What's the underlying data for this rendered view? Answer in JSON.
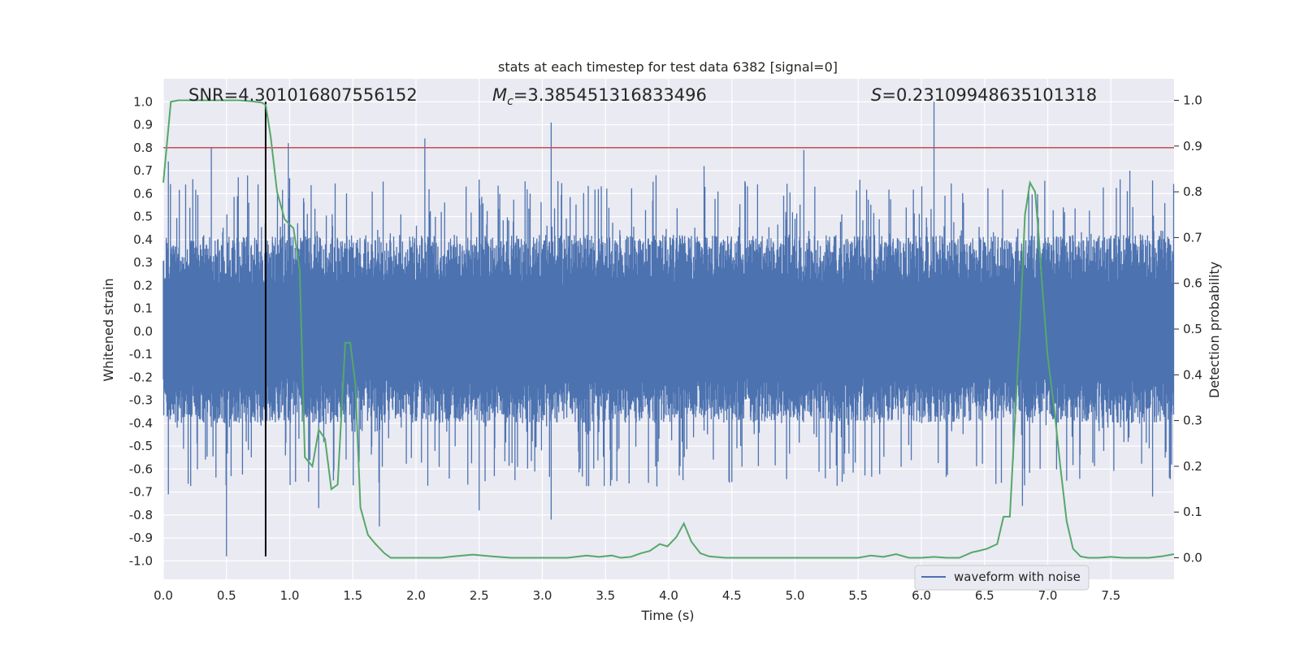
{
  "chart_data": {
    "type": "line",
    "title": "stats at each timestep for test data 6382 [signal=0]",
    "xlabel": "Time (s)",
    "ylabel_left": "Whitened strain",
    "ylabel_right": "Detection probability",
    "xlim": [
      0.0,
      8.0
    ],
    "ylim_left": [
      -1.08,
      1.1
    ],
    "ylim_right": [
      -0.047,
      1.047
    ],
    "x_ticks": [
      "0.0",
      "0.5",
      "1.0",
      "1.5",
      "2.0",
      "2.5",
      "3.0",
      "3.5",
      "4.0",
      "4.5",
      "5.0",
      "5.5",
      "6.0",
      "6.5",
      "7.0",
      "7.5"
    ],
    "y_left_ticks": [
      "-1.0",
      "-0.9",
      "-0.8",
      "-0.7",
      "-0.6",
      "-0.5",
      "-0.4",
      "-0.3",
      "-0.2",
      "-0.1",
      "0.0",
      "0.1",
      "0.2",
      "0.3",
      "0.4",
      "0.5",
      "0.6",
      "0.7",
      "0.8",
      "0.9",
      "1.0"
    ],
    "y_right_ticks": [
      "0.0",
      "0.1",
      "0.2",
      "0.3",
      "0.4",
      "0.5",
      "0.6",
      "0.7",
      "0.8",
      "0.9",
      "1.0"
    ],
    "grid": true,
    "annotations": {
      "snr": "SNR=4.301016807556152",
      "mc_symbol": "M",
      "mc_sub": "c",
      "mc_value": "=3.385451316833496",
      "s_symbol": "S",
      "s_value": "=0.23109948635101318"
    },
    "legend": {
      "label": "waveform with noise",
      "location": "lower right"
    },
    "threshold_line": {
      "axis": "left",
      "y": 0.8,
      "color": "#c44e52"
    },
    "vertical_marker": {
      "x": 0.81,
      "y_range": [
        -0.98,
        1.0
      ],
      "color": "#000000"
    },
    "waveform": {
      "name": "waveform with noise",
      "color": "#4c72b0",
      "sample_count": 2400,
      "description_values": "dense noise approx. within [-0.4, 0.4] with sparse spikes",
      "spikes": [
        {
          "x": 0.04,
          "y": 0.74
        },
        {
          "x": 0.04,
          "y": -0.71
        },
        {
          "x": 0.38,
          "y": 0.8
        },
        {
          "x": 0.5,
          "y": -0.98
        },
        {
          "x": 0.75,
          "y": 0.64
        },
        {
          "x": 0.99,
          "y": 0.82
        },
        {
          "x": 1.23,
          "y": -0.77
        },
        {
          "x": 1.71,
          "y": -0.85
        },
        {
          "x": 2.07,
          "y": 0.84
        },
        {
          "x": 2.5,
          "y": -0.78
        },
        {
          "x": 3.07,
          "y": 0.91
        },
        {
          "x": 3.07,
          "y": -0.82
        },
        {
          "x": 3.9,
          "y": 0.68
        },
        {
          "x": 4.28,
          "y": 0.72
        },
        {
          "x": 5.07,
          "y": 0.79
        },
        {
          "x": 6.1,
          "y": 1.0
        },
        {
          "x": 6.85,
          "y": 0.63
        },
        {
          "x": 6.8,
          "y": -0.76
        },
        {
          "x": 7.65,
          "y": 0.7
        },
        {
          "x": 7.83,
          "y": -0.72
        }
      ]
    },
    "detection_probability": {
      "name": "detection probability",
      "color": "#55a868",
      "axis": "right",
      "x": [
        0.0,
        0.06,
        0.12,
        0.2,
        0.3,
        0.4,
        0.5,
        0.6,
        0.7,
        0.78,
        0.81,
        0.85,
        0.9,
        0.96,
        1.03,
        1.08,
        1.12,
        1.18,
        1.23,
        1.28,
        1.33,
        1.38,
        1.44,
        1.48,
        1.52,
        1.56,
        1.62,
        1.68,
        1.75,
        1.8,
        1.86,
        1.95,
        2.05,
        2.2,
        2.3,
        2.45,
        2.6,
        2.75,
        2.9,
        3.05,
        3.2,
        3.35,
        3.45,
        3.55,
        3.62,
        3.7,
        3.78,
        3.85,
        3.93,
        3.99,
        4.06,
        4.12,
        4.18,
        4.25,
        4.32,
        4.45,
        4.6,
        4.8,
        5.0,
        5.2,
        5.35,
        5.5,
        5.6,
        5.7,
        5.8,
        5.9,
        6.0,
        6.1,
        6.2,
        6.3,
        6.4,
        6.45,
        6.52,
        6.6,
        6.65,
        6.7,
        6.74,
        6.78,
        6.82,
        6.86,
        6.9,
        6.93,
        6.96,
        7.0,
        7.05,
        7.1,
        7.15,
        7.2,
        7.26,
        7.32,
        7.4,
        7.5,
        7.6,
        7.7,
        7.8,
        7.9,
        8.0
      ],
      "y": [
        0.82,
        0.997,
        1.0,
        1.0,
        1.0,
        1.0,
        1.0,
        1.0,
        0.998,
        0.995,
        0.99,
        0.92,
        0.8,
        0.74,
        0.72,
        0.63,
        0.22,
        0.2,
        0.28,
        0.26,
        0.15,
        0.16,
        0.47,
        0.47,
        0.38,
        0.11,
        0.05,
        0.03,
        0.01,
        0.0,
        0.0,
        0.0,
        0.0,
        0.0,
        0.003,
        0.007,
        0.003,
        0.0,
        0.0,
        0.0,
        0.0,
        0.005,
        0.002,
        0.005,
        0.0,
        0.002,
        0.01,
        0.015,
        0.03,
        0.025,
        0.045,
        0.075,
        0.035,
        0.01,
        0.003,
        0.0,
        0.0,
        0.0,
        0.0,
        0.0,
        0.0,
        0.0,
        0.005,
        0.002,
        0.008,
        0.0,
        0.0,
        0.002,
        0.0,
        0.0,
        0.012,
        0.015,
        0.02,
        0.03,
        0.09,
        0.09,
        0.3,
        0.5,
        0.75,
        0.82,
        0.8,
        0.7,
        0.58,
        0.44,
        0.33,
        0.2,
        0.08,
        0.02,
        0.003,
        0.0,
        0.0,
        0.002,
        0.0,
        0.0,
        0.0,
        0.003,
        0.008
      ]
    }
  }
}
